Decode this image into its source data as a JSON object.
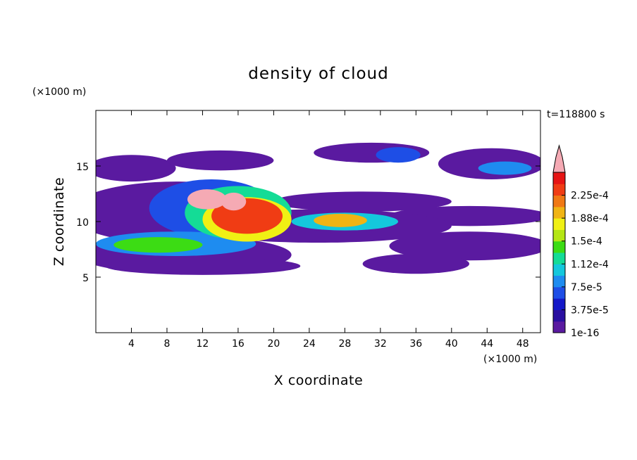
{
  "chart_data": {
    "type": "heatmap",
    "title": "density of cloud",
    "xlabel": "X coordinate",
    "ylabel": "Z coordinate",
    "x_unit": "(×1000 m)",
    "y_unit": "(×1000 m)",
    "time_label": "t=118800 s",
    "xlim": [
      0,
      50
    ],
    "ylim": [
      0,
      20
    ],
    "x_ticks": [
      4,
      8,
      12,
      16,
      20,
      24,
      28,
      32,
      36,
      40,
      44,
      48
    ],
    "y_ticks": [
      5,
      10,
      15
    ],
    "colorbar": {
      "levels": [
        1e-16,
        1.875e-05,
        3.75e-05,
        5.625e-05,
        7.5e-05,
        9.375e-05,
        0.0001125,
        0.00013125,
        0.00015,
        0.00016875,
        0.0001875,
        0.00020625,
        0.000225,
        0.00024375
      ],
      "tick_labels": [
        "1e-16",
        "3.75e-5",
        "7.5e-5",
        "1.12e-4",
        "1.5e-4",
        "1.88e-4",
        "2.25e-4"
      ],
      "colors": [
        "#5a1aa0",
        "#2a0fa0",
        "#1418c8",
        "#1e4ee6",
        "#1e8cf0",
        "#14c8dc",
        "#14dc96",
        "#3cdc14",
        "#b4e614",
        "#f0f014",
        "#f0b414",
        "#f07814",
        "#f03c14",
        "#e61414"
      ],
      "overflow_color": "#f5aab4"
    },
    "regions": [
      {
        "cx": 4,
        "cy": 14.8,
        "rx": 5,
        "ry": 1.2,
        "level": 0
      },
      {
        "cx": 14,
        "cy": 15.5,
        "rx": 6,
        "ry": 0.9,
        "level": 0
      },
      {
        "cx": 31,
        "cy": 16.2,
        "rx": 6.5,
        "ry": 0.9,
        "level": 0
      },
      {
        "cx": 44.5,
        "cy": 15.2,
        "rx": 6,
        "ry": 1.4,
        "level": 0
      },
      {
        "cx": 9,
        "cy": 10.8,
        "rx": 12,
        "ry": 2.8,
        "level": 0
      },
      {
        "cx": 30,
        "cy": 11.8,
        "rx": 10,
        "ry": 0.9,
        "level": 0
      },
      {
        "cx": 42,
        "cy": 10.5,
        "rx": 9,
        "ry": 0.9,
        "level": 0
      },
      {
        "cx": 25,
        "cy": 9.6,
        "rx": 15,
        "ry": 1.5,
        "level": 0
      },
      {
        "cx": 42,
        "cy": 7.8,
        "rx": 9,
        "ry": 1.3,
        "level": 0
      },
      {
        "cx": 10,
        "cy": 7.0,
        "rx": 12,
        "ry": 1.7,
        "level": 0
      },
      {
        "cx": 12,
        "cy": 6.0,
        "rx": 11,
        "ry": 0.8,
        "level": 0
      },
      {
        "cx": 36,
        "cy": 6.2,
        "rx": 6,
        "ry": 0.9,
        "level": 0
      },
      {
        "cx": 34,
        "cy": 16.0,
        "rx": 2.5,
        "ry": 0.7,
        "level": 3
      },
      {
        "cx": 46,
        "cy": 14.8,
        "rx": 3,
        "ry": 0.6,
        "level": 4
      },
      {
        "cx": 13,
        "cy": 11.2,
        "rx": 7,
        "ry": 2.6,
        "level": 3
      },
      {
        "cx": 9,
        "cy": 8.0,
        "rx": 9,
        "ry": 1.1,
        "level": 4
      },
      {
        "cx": 28,
        "cy": 10.0,
        "rx": 6,
        "ry": 0.8,
        "level": 5
      },
      {
        "cx": 16,
        "cy": 10.8,
        "rx": 6,
        "ry": 2.4,
        "level": 6
      },
      {
        "cx": 7,
        "cy": 7.9,
        "rx": 5,
        "ry": 0.7,
        "level": 7
      },
      {
        "cx": 17,
        "cy": 10.2,
        "rx": 5,
        "ry": 2.0,
        "level": 9
      },
      {
        "cx": 27.5,
        "cy": 10.1,
        "rx": 3,
        "ry": 0.6,
        "level": 10
      },
      {
        "cx": 17,
        "cy": 10.5,
        "rx": 4,
        "ry": 1.6,
        "level": 12
      },
      {
        "cx": 12.5,
        "cy": 12.0,
        "rx": 2.2,
        "ry": 0.9,
        "level": 14
      },
      {
        "cx": 15.5,
        "cy": 11.8,
        "rx": 1.4,
        "ry": 0.8,
        "level": 14
      }
    ]
  }
}
